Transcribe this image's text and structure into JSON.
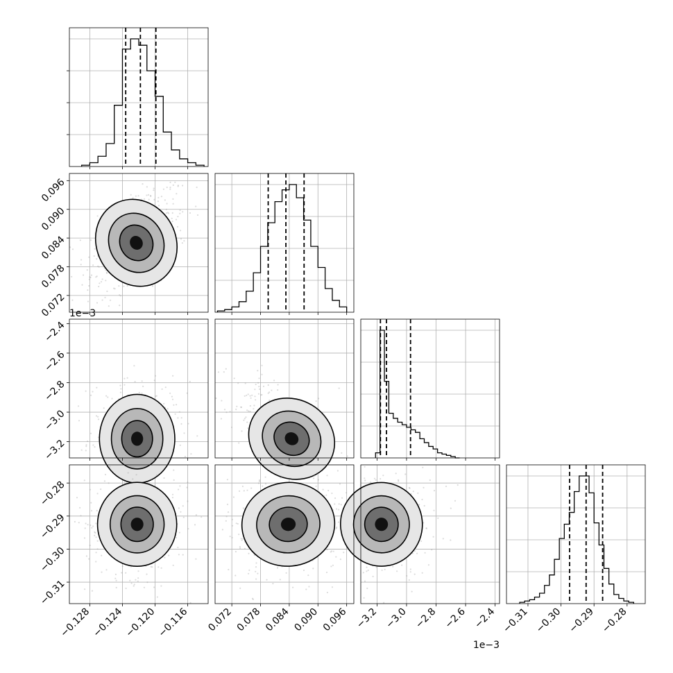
{
  "chart_data": {
    "type": "corner",
    "grid": true,
    "parameters": [
      {
        "index": 0,
        "range": [
          -0.1305,
          -0.1135
        ],
        "ticks": [
          -0.128,
          -0.124,
          -0.12,
          -0.116
        ],
        "tick_labels": [
          "−0.128",
          "−0.124",
          "−0.120",
          "−0.116"
        ],
        "quantiles": [
          -0.1236,
          -0.1218,
          -0.1199
        ],
        "offset_label": ""
      },
      {
        "index": 1,
        "range": [
          0.0685,
          0.0975
        ],
        "ticks": [
          0.072,
          0.078,
          0.084,
          0.09,
          0.096
        ],
        "tick_labels": [
          "0.072",
          "0.078",
          "0.084",
          "0.090",
          "0.096"
        ],
        "quantiles": [
          0.0796,
          0.0833,
          0.0871
        ],
        "offset_label": ""
      },
      {
        "index": 2,
        "range": [
          -3.31,
          -2.37
        ],
        "ticks": [
          -3.2,
          -3.0,
          -2.8,
          -2.6,
          -2.4
        ],
        "tick_labels": [
          "−3.2",
          "−3.0",
          "−2.8",
          "−2.6",
          "−2.4"
        ],
        "quantiles": [
          -3.177,
          -3.136,
          -2.973
        ],
        "offset_label": "1e−3"
      },
      {
        "index": 3,
        "range": [
          -0.3165,
          -0.2745
        ],
        "ticks": [
          -0.31,
          -0.3,
          -0.29,
          -0.28
        ],
        "tick_labels": [
          "−0.31",
          "−0.30",
          "−0.29",
          "−0.28"
        ],
        "quantiles": [
          -0.2974,
          -0.2924,
          -0.2874
        ],
        "offset_label": ""
      }
    ],
    "histograms": [
      {
        "param": 0,
        "bin_edges": [
          -0.129,
          -0.128,
          -0.127,
          -0.126,
          -0.125,
          -0.124,
          -0.123,
          -0.122,
          -0.121,
          -0.12,
          -0.119,
          -0.118,
          -0.117,
          -0.116,
          -0.115,
          -0.114
        ],
        "counts": [
          1,
          3,
          8,
          18,
          48,
          92,
          100,
          95,
          75,
          55,
          27,
          13,
          6,
          3,
          1
        ]
      },
      {
        "param": 1,
        "bin_edges": [
          0.069,
          0.0705,
          0.072,
          0.0735,
          0.075,
          0.0765,
          0.078,
          0.0795,
          0.081,
          0.0825,
          0.084,
          0.0855,
          0.087,
          0.0885,
          0.09,
          0.0915,
          0.093,
          0.0945,
          0.096
        ],
        "counts": [
          1,
          2,
          4,
          8,
          16,
          30,
          50,
          68,
          84,
          93,
          97,
          87,
          70,
          50,
          34,
          18,
          9,
          4
        ]
      },
      {
        "param": 2,
        "bin_edges": [
          -3.21,
          -3.18,
          -3.15,
          -3.12,
          -3.09,
          -3.06,
          -3.03,
          -3.0,
          -2.97,
          -2.94,
          -2.91,
          -2.88,
          -2.85,
          -2.82,
          -2.79,
          -2.76,
          -2.73,
          -2.7,
          -2.67,
          -2.64
        ],
        "counts": [
          4,
          100,
          60,
          35,
          31,
          28,
          26,
          24,
          22,
          20,
          15,
          12,
          9,
          7,
          4,
          3,
          2,
          1,
          0
        ]
      },
      {
        "param": 3,
        "bin_edges": [
          -0.3125,
          -0.311,
          -0.3095,
          -0.308,
          -0.3065,
          -0.305,
          -0.3035,
          -0.302,
          -0.3005,
          -0.299,
          -0.2975,
          -0.296,
          -0.2945,
          -0.293,
          -0.2915,
          -0.29,
          -0.2885,
          -0.287,
          -0.2855,
          -0.284,
          -0.2825,
          -0.281,
          -0.2795,
          -0.278
        ],
        "counts": [
          1,
          2,
          3,
          5,
          8,
          14,
          22,
          34,
          50,
          61,
          70,
          86,
          98,
          98,
          85,
          62,
          45,
          27,
          15,
          7,
          4,
          2,
          1
        ]
      }
    ],
    "densities": [
      {
        "x": 0,
        "y": 1,
        "center": [
          -0.1223,
          0.083
        ],
        "spread": [
          0.0021,
          0.0043
        ],
        "rho": 0.45
      },
      {
        "x": 0,
        "y": 2,
        "center": [
          -0.1222,
          -3.18
        ],
        "spread": [
          0.002,
          0.13
        ],
        "rho": 0.0
      },
      {
        "x": 1,
        "y": 2,
        "center": [
          0.0845,
          -3.18
        ],
        "spread": [
          0.004,
          0.13
        ],
        "rho": -0.6
      },
      {
        "x": 0,
        "y": 3,
        "center": [
          -0.1222,
          -0.2925
        ],
        "spread": [
          0.0021,
          0.0055
        ],
        "rho": 0.0
      },
      {
        "x": 1,
        "y": 3,
        "center": [
          0.0838,
          -0.2925
        ],
        "spread": [
          0.0042,
          0.0055
        ],
        "rho": 0.1
      },
      {
        "x": 2,
        "y": 3,
        "center": [
          -3.17,
          -0.2925
        ],
        "spread": [
          0.12,
          0.0055
        ],
        "rho": 0.1
      }
    ]
  }
}
